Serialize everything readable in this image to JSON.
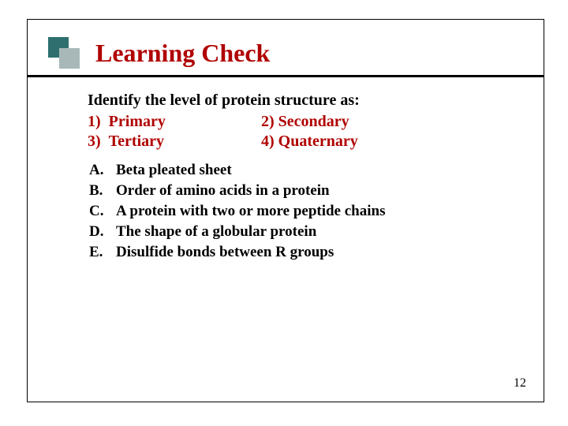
{
  "title": "Learning Check",
  "title_color": "#b00000",
  "underline_color": "#000000",
  "icon": {
    "back_color": "#2f6f6f",
    "front_color": "#a8b8b8"
  },
  "prompt": "Identify the level of protein structure as:",
  "options": [
    {
      "num": "1)",
      "label": "Primary"
    },
    {
      "num": "2)",
      "label": "Secondary"
    },
    {
      "num": "3)",
      "label": "Tertiary"
    },
    {
      "num": "4)",
      "label": "Quaternary"
    }
  ],
  "option_color": "#b00000",
  "answers": [
    {
      "letter": "A.",
      "text": "Beta pleated sheet"
    },
    {
      "letter": "B.",
      "text": "Order of amino acids in a protein"
    },
    {
      "letter": "C.",
      "text": "A protein with two or more peptide chains"
    },
    {
      "letter": "D.",
      "text": "The shape of a globular protein"
    },
    {
      "letter": "E.",
      "text": "Disulfide bonds between R groups"
    }
  ],
  "answer_color": "#000000",
  "page_number": "12",
  "background_color": "#ffffff"
}
